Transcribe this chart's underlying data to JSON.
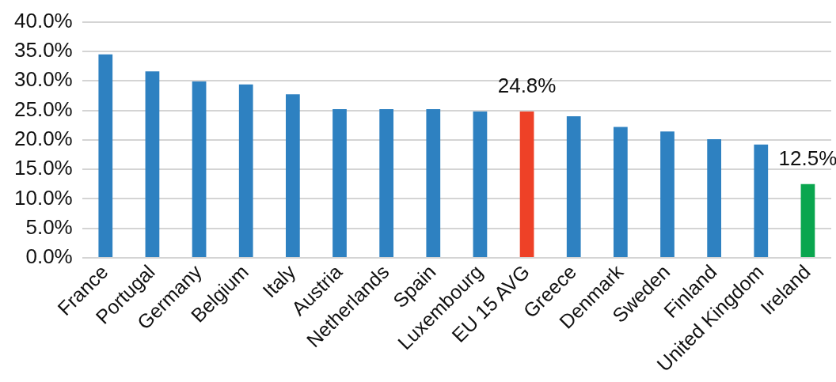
{
  "chart_data": {
    "type": "bar",
    "categories": [
      "France",
      "Portugal",
      "Germany",
      "Belgium",
      "Italy",
      "Austria",
      "Netherlands",
      "Spain",
      "Luxembourg",
      "EU 15 AVG",
      "Greece",
      "Denmark",
      "Sweden",
      "Finland",
      "United Kingdom",
      "Ireland"
    ],
    "values": [
      34.5,
      31.6,
      29.9,
      29.4,
      27.7,
      25.2,
      25.2,
      25.2,
      24.8,
      24.8,
      24.0,
      22.2,
      21.4,
      20.1,
      19.2,
      12.5
    ],
    "colors": [
      "#2e81c1",
      "#2e81c1",
      "#2e81c1",
      "#2e81c1",
      "#2e81c1",
      "#2e81c1",
      "#2e81c1",
      "#2e81c1",
      "#2e81c1",
      "#ee4127",
      "#2e81c1",
      "#2e81c1",
      "#2e81c1",
      "#2e81c1",
      "#2e81c1",
      "#0aa64f"
    ],
    "value_labels": [
      null,
      null,
      null,
      null,
      null,
      null,
      null,
      null,
      null,
      "24.8%",
      null,
      null,
      null,
      null,
      null,
      "12.5%"
    ],
    "ylim": [
      0,
      40
    ],
    "yticks": [
      {
        "value": 0,
        "label": "0.0%"
      },
      {
        "value": 5,
        "label": "5.0%"
      },
      {
        "value": 10,
        "label": "10.0%"
      },
      {
        "value": 15,
        "label": "15.0%"
      },
      {
        "value": 20,
        "label": "20.0%"
      },
      {
        "value": 25,
        "label": "25.0%"
      },
      {
        "value": 30,
        "label": "30.0%"
      },
      {
        "value": 35,
        "label": "35.0%"
      },
      {
        "value": 40,
        "label": "40.0%"
      }
    ],
    "grid": "y",
    "legend": false
  }
}
